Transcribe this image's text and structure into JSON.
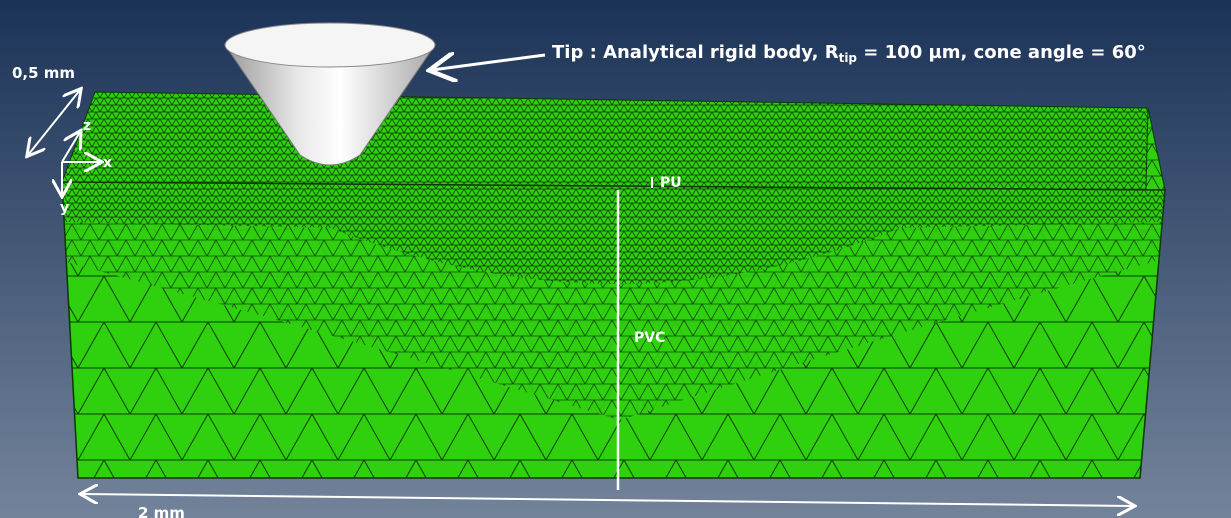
{
  "labels": {
    "depth": "0,5 mm",
    "axis_z": "z",
    "axis_x": "x",
    "axis_y": "y",
    "tip_prefix": "Tip : Analytical rigid body, R",
    "tip_subscript": "tip",
    "tip_suffix": " = 100 µm, cone angle = 60°",
    "pu": "PU",
    "pvc": "PVC",
    "width": "2 mm"
  }
}
